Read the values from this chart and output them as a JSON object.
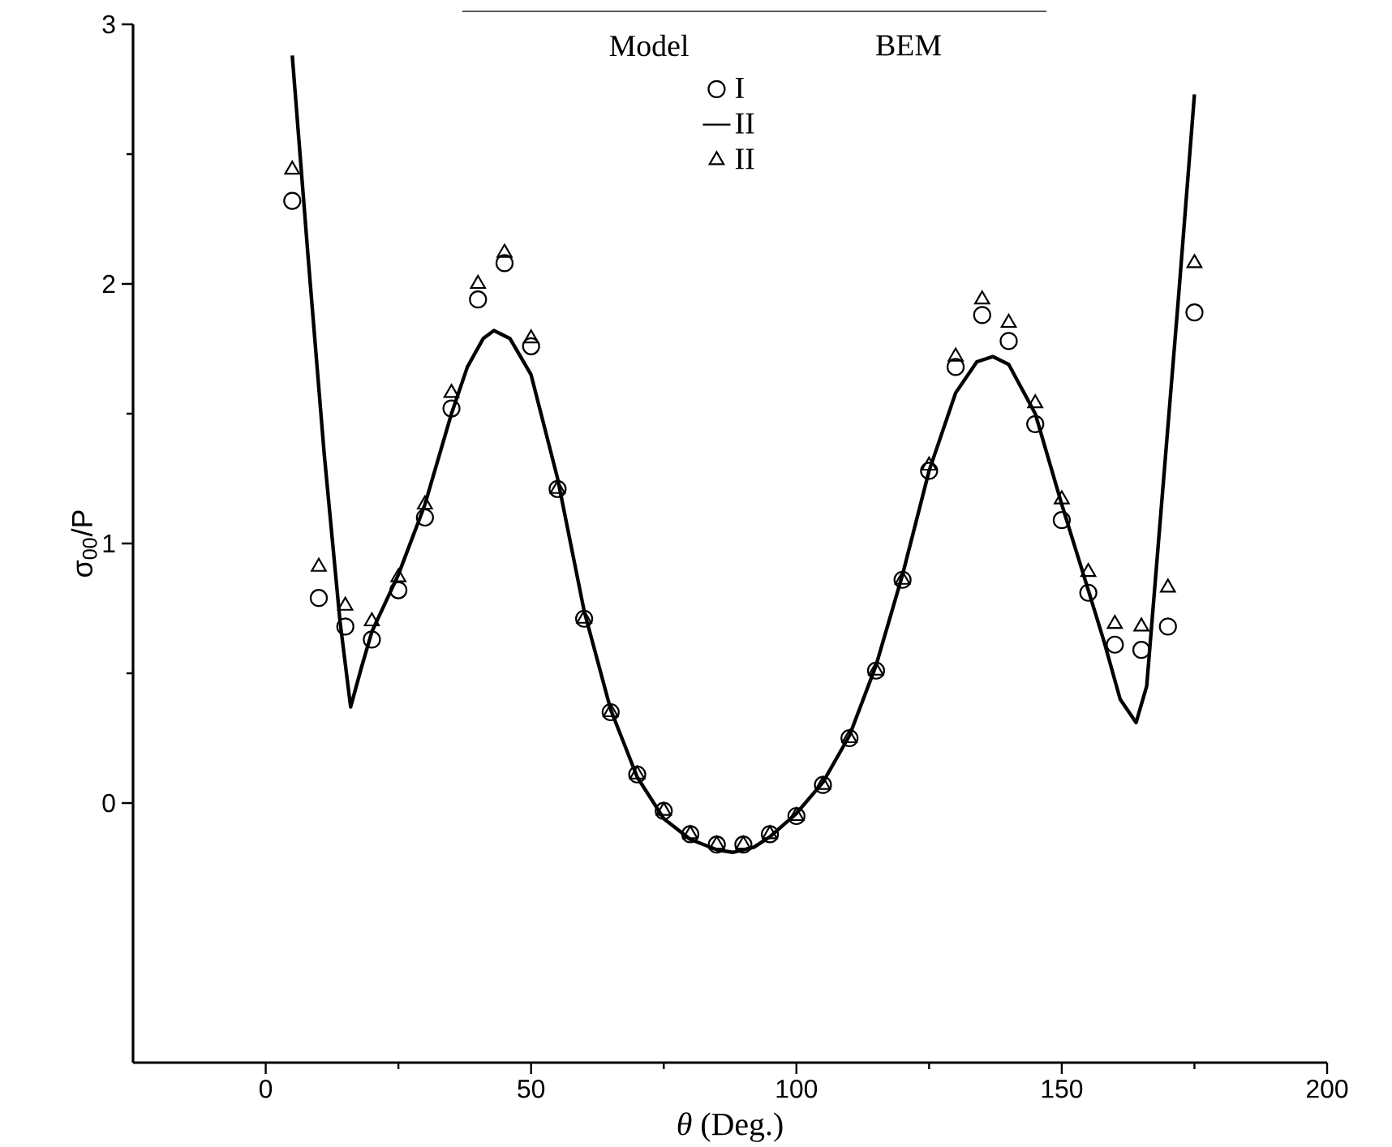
{
  "chart_data": {
    "type": "scatter",
    "xlabel": "*θ* (Deg.)",
    "ylabel": "σ$_{00}$/P",
    "legend_title": "Model",
    "annotations": [
      "BEM"
    ],
    "xlim": [
      -25,
      200
    ],
    "ylim": [
      -1,
      3
    ],
    "xticks": [
      0,
      50,
      100,
      150,
      200
    ],
    "yticks": [
      0,
      1,
      2,
      3
    ],
    "legend": "top",
    "grid": false,
    "series": [
      {
        "name": "I",
        "marker": "circle",
        "color": "#000000",
        "x": [
          5,
          10,
          15,
          20,
          25,
          30,
          35,
          40,
          45,
          50,
          55,
          60,
          65,
          70,
          75,
          80,
          85,
          90,
          95,
          100,
          105,
          110,
          115,
          120,
          125,
          130,
          135,
          140,
          145,
          150,
          155,
          160,
          165,
          170,
          175
        ],
        "values": [
          2.32,
          0.79,
          0.68,
          0.63,
          0.82,
          1.1,
          1.52,
          1.94,
          2.08,
          1.76,
          1.21,
          0.71,
          0.35,
          0.11,
          -0.03,
          -0.12,
          -0.16,
          -0.16,
          -0.12,
          -0.05,
          0.07,
          0.25,
          0.51,
          0.86,
          1.28,
          1.68,
          1.88,
          1.78,
          1.46,
          1.09,
          0.81,
          0.61,
          0.59,
          0.68,
          1.89
        ]
      },
      {
        "name": "II",
        "type": "line",
        "marker": "none",
        "line_style": "solid",
        "color": "#000000",
        "x": [
          5,
          8,
          11,
          14,
          16,
          18,
          20,
          25,
          30,
          35,
          38,
          41,
          43,
          46,
          50,
          55,
          60,
          65,
          70,
          75,
          80,
          85,
          88,
          92,
          95,
          100,
          105,
          110,
          115,
          120,
          125,
          130,
          134,
          137,
          140,
          145,
          150,
          155,
          158,
          161,
          164,
          166,
          169,
          172,
          175
        ],
        "values": [
          2.88,
          2.1,
          1.35,
          0.7,
          0.37,
          0.52,
          0.66,
          0.88,
          1.15,
          1.5,
          1.68,
          1.79,
          1.82,
          1.79,
          1.65,
          1.25,
          0.74,
          0.36,
          0.1,
          -0.06,
          -0.14,
          -0.18,
          -0.19,
          -0.17,
          -0.13,
          -0.04,
          0.08,
          0.26,
          0.53,
          0.88,
          1.28,
          1.58,
          1.7,
          1.72,
          1.69,
          1.5,
          1.15,
          0.82,
          0.62,
          0.4,
          0.31,
          0.45,
          1.2,
          1.95,
          2.73
        ]
      },
      {
        "name": "II",
        "marker": "triangle",
        "color": "#000000",
        "x": [
          5,
          10,
          15,
          20,
          25,
          30,
          35,
          40,
          45,
          50,
          55,
          60,
          65,
          70,
          75,
          80,
          85,
          90,
          95,
          100,
          105,
          110,
          115,
          120,
          125,
          130,
          135,
          140,
          145,
          150,
          155,
          160,
          165,
          170,
          175
        ],
        "values": [
          2.44,
          0.91,
          0.76,
          0.7,
          0.87,
          1.15,
          1.58,
          2.0,
          2.12,
          1.79,
          1.21,
          0.71,
          0.35,
          0.11,
          -0.03,
          -0.12,
          -0.16,
          -0.16,
          -0.12,
          -0.05,
          0.07,
          0.25,
          0.51,
          0.86,
          1.3,
          1.72,
          1.94,
          1.85,
          1.54,
          1.17,
          0.89,
          0.69,
          0.68,
          0.83,
          2.08
        ]
      }
    ]
  }
}
